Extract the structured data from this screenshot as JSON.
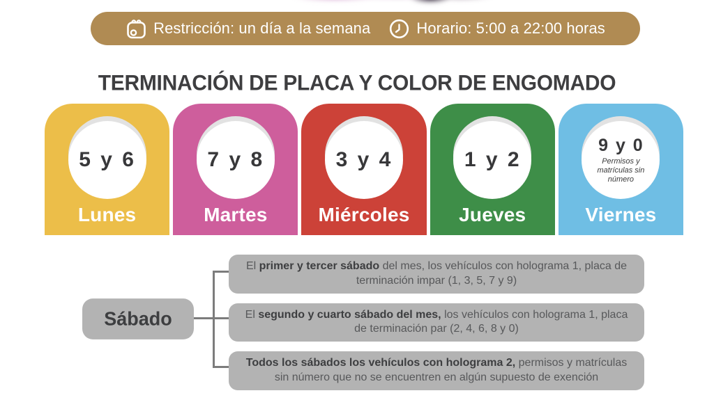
{
  "banner": {
    "restriction_label": "Restricción: un día a la semana",
    "schedule_label": "Horario: 5:00 a 22:00 horas",
    "bg_color": "#B08B53",
    "icons": [
      "calendar-icon",
      "clock-icon"
    ]
  },
  "title": "TERMINACIÓN DE PLACA Y COLOR DE ENGOMADO",
  "cards": [
    {
      "day": "Lunes",
      "plates": "5 y 6",
      "note": "",
      "color": "#ECBE49"
    },
    {
      "day": "Martes",
      "plates": "7 y 8",
      "note": "",
      "color": "#CE5E9C"
    },
    {
      "day": "Miércoles",
      "plates": "3 y 4",
      "note": "",
      "color": "#CC4238"
    },
    {
      "day": "Jueves",
      "plates": "1 y 2",
      "note": "",
      "color": "#3E8E48"
    },
    {
      "day": "Viernes",
      "plates": "9 y 0",
      "note": "Permisos y matrículas sin número",
      "color": "#6FBEE4"
    }
  ],
  "saturday": {
    "label": "Sábado",
    "box_color": "#B3B3B3",
    "line_color": "#7C7C7C",
    "rules": [
      {
        "parts": [
          {
            "t": "El ",
            "b": false
          },
          {
            "t": "primer y tercer sábado",
            "b": true
          },
          {
            "t": " del mes, los vehículos con holograma 1, placa de terminación impar (1, 3, 5, 7 y 9)",
            "b": false
          }
        ]
      },
      {
        "parts": [
          {
            "t": "El ",
            "b": false
          },
          {
            "t": "segundo y cuarto sábado del mes,",
            "b": true
          },
          {
            "t": " los vehículos con holograma 1, placa de terminación par (2, 4, 6, 8 y 0)",
            "b": false
          }
        ]
      },
      {
        "parts": [
          {
            "t": "Todos los sábados los vehículos con holograma 2,",
            "b": true
          },
          {
            "t": " permisos y matrículas sin número que no se encuentren en algún supuesto de exención",
            "b": false
          }
        ]
      }
    ]
  }
}
